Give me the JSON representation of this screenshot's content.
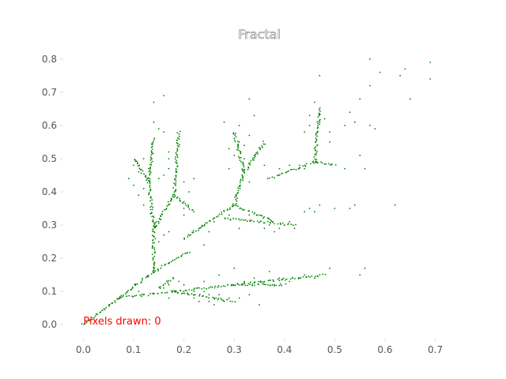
{
  "chart_data": {
    "type": "scatter",
    "title": "Fractal",
    "xlabel": "",
    "ylabel": "",
    "xlim": [
      -0.04,
      0.74
    ],
    "ylim": [
      -0.04,
      0.84
    ],
    "xticks": [
      0.0,
      0.1,
      0.2,
      0.3,
      0.4,
      0.5,
      0.6,
      0.7
    ],
    "yticks": [
      0.0,
      0.1,
      0.2,
      0.3,
      0.4,
      0.5,
      0.6,
      0.7,
      0.8
    ],
    "grid": false,
    "point_color": "#008000",
    "annotation": {
      "text": "Pixels drawn: 0",
      "x": 0.0,
      "y": 0.0,
      "color": "#ff0000"
    },
    "branches": [
      {
        "from": [
          0.0,
          0.0
        ],
        "to": [
          0.14,
          0.16
        ]
      },
      {
        "from": [
          0.07,
          0.08
        ],
        "to": [
          0.18,
          0.1
        ]
      },
      {
        "from": [
          0.14,
          0.16
        ],
        "to": [
          0.14,
          0.29
        ]
      },
      {
        "from": [
          0.14,
          0.16
        ],
        "to": [
          0.21,
          0.22
        ]
      },
      {
        "from": [
          0.14,
          0.29
        ],
        "to": [
          0.13,
          0.43
        ]
      },
      {
        "from": [
          0.14,
          0.29
        ],
        "to": [
          0.18,
          0.39
        ]
      },
      {
        "from": [
          0.13,
          0.43
        ],
        "to": [
          0.1,
          0.5
        ]
      },
      {
        "from": [
          0.13,
          0.43
        ],
        "to": [
          0.14,
          0.56
        ]
      },
      {
        "from": [
          0.18,
          0.39
        ],
        "to": [
          0.19,
          0.58
        ]
      },
      {
        "from": [
          0.18,
          0.39
        ],
        "to": [
          0.22,
          0.34
        ]
      },
      {
        "from": [
          0.2,
          0.26
        ],
        "to": [
          0.3,
          0.36
        ]
      },
      {
        "from": [
          0.3,
          0.36
        ],
        "to": [
          0.32,
          0.46
        ]
      },
      {
        "from": [
          0.3,
          0.36
        ],
        "to": [
          0.38,
          0.31
        ]
      },
      {
        "from": [
          0.32,
          0.46
        ],
        "to": [
          0.3,
          0.58
        ]
      },
      {
        "from": [
          0.32,
          0.46
        ],
        "to": [
          0.36,
          0.55
        ]
      },
      {
        "from": [
          0.28,
          0.32
        ],
        "to": [
          0.42,
          0.3
        ]
      },
      {
        "from": [
          0.37,
          0.44
        ],
        "to": [
          0.46,
          0.49
        ]
      },
      {
        "from": [
          0.46,
          0.49
        ],
        "to": [
          0.47,
          0.65
        ]
      },
      {
        "from": [
          0.46,
          0.49
        ],
        "to": [
          0.5,
          0.48
        ]
      },
      {
        "from": [
          0.18,
          0.1
        ],
        "to": [
          0.3,
          0.12
        ]
      },
      {
        "from": [
          0.18,
          0.1
        ],
        "to": [
          0.3,
          0.07
        ]
      },
      {
        "from": [
          0.3,
          0.12
        ],
        "to": [
          0.48,
          0.15
        ]
      },
      {
        "from": [
          0.3,
          0.12
        ],
        "to": [
          0.4,
          0.12
        ]
      },
      {
        "from": [
          0.15,
          0.11
        ],
        "to": [
          0.18,
          0.14
        ]
      }
    ],
    "points": [
      [
        0.16,
        0.69
      ],
      [
        0.14,
        0.67
      ],
      [
        0.1,
        0.48
      ],
      [
        0.09,
        0.44
      ],
      [
        0.11,
        0.46
      ],
      [
        0.12,
        0.5
      ],
      [
        0.13,
        0.47
      ],
      [
        0.17,
        0.52
      ],
      [
        0.17,
        0.5
      ],
      [
        0.16,
        0.58
      ],
      [
        0.15,
        0.59
      ],
      [
        0.14,
        0.61
      ],
      [
        0.21,
        0.4
      ],
      [
        0.2,
        0.43
      ],
      [
        0.22,
        0.44
      ],
      [
        0.28,
        0.61
      ],
      [
        0.3,
        0.51
      ],
      [
        0.31,
        0.6
      ],
      [
        0.32,
        0.54
      ],
      [
        0.33,
        0.57
      ],
      [
        0.34,
        0.51
      ],
      [
        0.33,
        0.68
      ],
      [
        0.34,
        0.63
      ],
      [
        0.36,
        0.48
      ],
      [
        0.45,
        0.6
      ],
      [
        0.44,
        0.58
      ],
      [
        0.47,
        0.61
      ],
      [
        0.48,
        0.62
      ],
      [
        0.46,
        0.67
      ],
      [
        0.45,
        0.63
      ],
      [
        0.47,
        0.75
      ],
      [
        0.49,
        0.58
      ],
      [
        0.52,
        0.6
      ],
      [
        0.49,
        0.55
      ],
      [
        0.53,
        0.64
      ],
      [
        0.54,
        0.61
      ],
      [
        0.55,
        0.68
      ],
      [
        0.55,
        0.51
      ],
      [
        0.57,
        0.6
      ],
      [
        0.58,
        0.59
      ],
      [
        0.52,
        0.47
      ],
      [
        0.56,
        0.47
      ],
      [
        0.57,
        0.8
      ],
      [
        0.57,
        0.72
      ],
      [
        0.59,
        0.76
      ],
      [
        0.63,
        0.75
      ],
      [
        0.64,
        0.77
      ],
      [
        0.65,
        0.68
      ],
      [
        0.69,
        0.79
      ],
      [
        0.69,
        0.74
      ],
      [
        0.62,
        0.36
      ],
      [
        0.5,
        0.35
      ],
      [
        0.53,
        0.35
      ],
      [
        0.54,
        0.36
      ],
      [
        0.45,
        0.35
      ],
      [
        0.44,
        0.34
      ],
      [
        0.37,
        0.3
      ],
      [
        0.39,
        0.29
      ],
      [
        0.41,
        0.31
      ],
      [
        0.35,
        0.33
      ],
      [
        0.33,
        0.33
      ],
      [
        0.56,
        0.17
      ],
      [
        0.55,
        0.15
      ],
      [
        0.49,
        0.17
      ],
      [
        0.43,
        0.14
      ],
      [
        0.37,
        0.16
      ],
      [
        0.39,
        0.14
      ],
      [
        0.34,
        0.14
      ],
      [
        0.33,
        0.09
      ],
      [
        0.35,
        0.06
      ],
      [
        0.3,
        0.17
      ],
      [
        0.27,
        0.15
      ],
      [
        0.24,
        0.13
      ],
      [
        0.26,
        0.08
      ],
      [
        0.28,
        0.07
      ],
      [
        0.29,
        0.08
      ],
      [
        0.25,
        0.09
      ],
      [
        0.23,
        0.07
      ],
      [
        0.22,
        0.1
      ],
      [
        0.2,
        0.12
      ],
      [
        0.19,
        0.13
      ],
      [
        0.17,
        0.12
      ],
      [
        0.16,
        0.11
      ],
      [
        0.17,
        0.08
      ],
      [
        0.12,
        0.09
      ],
      [
        0.11,
        0.1
      ],
      [
        0.2,
        0.33
      ],
      [
        0.23,
        0.29
      ],
      [
        0.25,
        0.28
      ],
      [
        0.26,
        0.31
      ],
      [
        0.29,
        0.33
      ],
      [
        0.31,
        0.29
      ],
      [
        0.24,
        0.24
      ],
      [
        0.15,
        0.25
      ],
      [
        0.16,
        0.27
      ],
      [
        0.17,
        0.28
      ],
      [
        0.15,
        0.31
      ],
      [
        0.12,
        0.36
      ],
      [
        0.11,
        0.39
      ],
      [
        0.1,
        0.42
      ],
      [
        0.12,
        0.41
      ],
      [
        0.15,
        0.44
      ],
      [
        0.16,
        0.45
      ],
      [
        0.17,
        0.47
      ],
      [
        0.2,
        0.37
      ],
      [
        0.2,
        0.35
      ],
      [
        0.43,
        0.48
      ],
      [
        0.44,
        0.47
      ],
      [
        0.41,
        0.48
      ],
      [
        0.39,
        0.47
      ],
      [
        0.33,
        0.43
      ],
      [
        0.29,
        0.47
      ],
      [
        0.29,
        0.53
      ],
      [
        0.31,
        0.55
      ],
      [
        0.32,
        0.5
      ],
      [
        0.36,
        0.29
      ],
      [
        0.38,
        0.28
      ],
      [
        0.4,
        0.3
      ],
      [
        0.42,
        0.29
      ],
      [
        0.46,
        0.34
      ],
      [
        0.47,
        0.36
      ],
      [
        0.44,
        0.15
      ],
      [
        0.46,
        0.14
      ],
      [
        0.41,
        0.13
      ],
      [
        0.38,
        0.12
      ],
      [
        0.36,
        0.13
      ],
      [
        0.32,
        0.13
      ],
      [
        0.31,
        0.08
      ],
      [
        0.27,
        0.09
      ],
      [
        0.24,
        0.1
      ],
      [
        0.22,
        0.08
      ],
      [
        0.21,
        0.09
      ],
      [
        0.25,
        0.07
      ],
      [
        0.26,
        0.06
      ]
    ]
  }
}
